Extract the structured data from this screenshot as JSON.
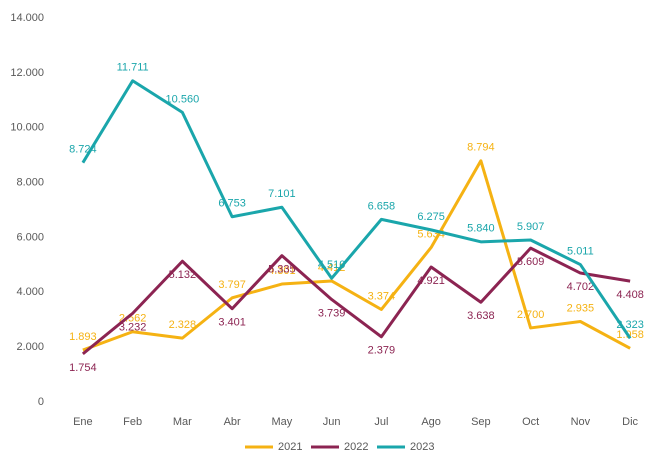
{
  "chart_data": {
    "type": "line",
    "categories": [
      "Ene",
      "Feb",
      "Mar",
      "Abr",
      "May",
      "Jun",
      "Jul",
      "Ago",
      "Sep",
      "Oct",
      "Nov",
      "Dic"
    ],
    "series": [
      {
        "name": "2021",
        "color": "#f5b213",
        "values": [
          1893,
          2562,
          2328,
          3797,
          4301,
          4412,
          3374,
          5634,
          8794,
          2700,
          2935,
          1958
        ],
        "value_labels": [
          "1.893",
          "2.562",
          "2.328",
          "3.797",
          "4.301",
          "4.412",
          "3.374",
          "5.634",
          "8.794",
          "2.700",
          "2.935",
          "1.958"
        ]
      },
      {
        "name": "2022",
        "color": "#8c2452",
        "values": [
          1754,
          3232,
          5132,
          3401,
          5335,
          3739,
          2379,
          4921,
          3638,
          5609,
          4702,
          4408
        ],
        "value_labels": [
          "1.754",
          "3.232",
          "5.132",
          "3.401",
          "5.335",
          "3.739",
          "2.379",
          "4.921",
          "3.638",
          "5.609",
          "4.702",
          "4.408"
        ]
      },
      {
        "name": "2023",
        "color": "#1aa6ab",
        "values": [
          8724,
          11711,
          10560,
          6753,
          7101,
          4510,
          6658,
          6275,
          5840,
          5907,
          5011,
          2323
        ],
        "value_labels": [
          "8.724",
          "11.711",
          "10.560",
          "6.753",
          "7.101",
          "4.510",
          "6.658",
          "6.275",
          "5.840",
          "5.907",
          "5.011",
          "2.323"
        ]
      }
    ],
    "ylim": [
      0,
      14000
    ],
    "yticks": [
      0,
      {
        "value": 2000,
        "label": "2.000"
      },
      {
        "value": 4000,
        "label": "4.000"
      },
      {
        "value": 6000,
        "label": "6.000"
      },
      {
        "value": 8000,
        "label": "8.000"
      },
      {
        "value": 10000,
        "label": "10.000"
      },
      {
        "value": 12000,
        "label": "12.000"
      },
      {
        "value": 14000,
        "label": "14.000"
      }
    ],
    "grid": false,
    "legend": "bottom"
  }
}
